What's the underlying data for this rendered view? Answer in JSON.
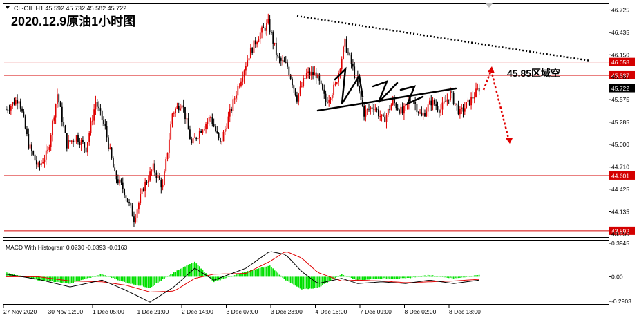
{
  "header": {
    "symbol_line": "CL-OIL,H1  45.592 45.732 45.582 45.722",
    "overlay_title": "2020.12.9原油1小时图",
    "annotation": "45.85区域空"
  },
  "macd_panel": {
    "label": "MACD With Histogram 0.0230 -0.0393 -0.0163",
    "ticks": [
      "0.3945",
      "0.00",
      "-0.2903"
    ]
  },
  "colors": {
    "bull": "#e00000",
    "bear": "#000000",
    "level_line": "#d40000",
    "macd_line": "#000000",
    "signal_line": "#e00000",
    "histogram": "#00e000",
    "price_label_bg": "#d40000",
    "current_label_bg": "#000000"
  },
  "chart_data": [
    {
      "type": "candlestick",
      "symbol": "CL-OIL",
      "timeframe": "H1",
      "ohlc_last": {
        "open": 45.592,
        "high": 45.732,
        "low": 45.582,
        "close": 45.722
      },
      "ylim": [
        43.82,
        46.8
      ],
      "y_ticks": [
        "46.725",
        "46.435",
        "46.150",
        "45.865",
        "45.575",
        "45.285",
        "45.000",
        "44.710",
        "44.425",
        "44.135",
        "43.850"
      ],
      "x_ticks": [
        "27 Nov 2020",
        "30 Nov 12:00",
        "1 Dec 05:00",
        "1 Dec 21:00",
        "2 Dec 14:00",
        "3 Dec 07:00",
        "3 Dec 23:00",
        "4 Dec 16:00",
        "7 Dec 09:00",
        "8 Dec 02:00",
        "8 Dec 18:00"
      ],
      "horizontal_levels": [
        {
          "value": 46.058,
          "label": "46.058"
        },
        {
          "value": 45.887,
          "label": "45.887"
        },
        {
          "value": 44.601,
          "label": "44.601"
        },
        {
          "value": 43.892,
          "label": "43.892"
        }
      ],
      "current_price": {
        "value": 45.722,
        "label": "45.722"
      },
      "close_path": [
        [
          0,
          45.45
        ],
        [
          8,
          45.6
        ],
        [
          14,
          45.0
        ],
        [
          20,
          44.7
        ],
        [
          26,
          44.9
        ],
        [
          32,
          45.65
        ],
        [
          38,
          45.0
        ],
        [
          44,
          45.1
        ],
        [
          50,
          44.95
        ],
        [
          56,
          45.55
        ],
        [
          62,
          45.2
        ],
        [
          68,
          44.6
        ],
        [
          74,
          44.4
        ],
        [
          80,
          44.05
        ],
        [
          86,
          44.45
        ],
        [
          92,
          44.7
        ],
        [
          98,
          44.45
        ],
        [
          104,
          45.4
        ],
        [
          110,
          45.55
        ],
        [
          116,
          45.0
        ],
        [
          122,
          45.2
        ],
        [
          128,
          45.35
        ],
        [
          134,
          45.0
        ],
        [
          140,
          45.4
        ],
        [
          146,
          45.8
        ],
        [
          152,
          46.15
        ],
        [
          158,
          46.4
        ],
        [
          164,
          46.55
        ],
        [
          170,
          46.1
        ],
        [
          176,
          46.0
        ],
        [
          182,
          45.6
        ],
        [
          188,
          45.9
        ],
        [
          194,
          45.9
        ],
        [
          200,
          45.55
        ],
        [
          206,
          45.75
        ],
        [
          212,
          46.3
        ],
        [
          218,
          45.9
        ],
        [
          224,
          45.4
        ],
        [
          230,
          45.5
        ],
        [
          236,
          45.3
        ],
        [
          242,
          45.55
        ],
        [
          248,
          45.4
        ],
        [
          254,
          45.6
        ],
        [
          260,
          45.35
        ],
        [
          266,
          45.55
        ],
        [
          272,
          45.45
        ],
        [
          278,
          45.65
        ],
        [
          284,
          45.4
        ],
        [
          290,
          45.55
        ],
        [
          296,
          45.722
        ]
      ],
      "macd": {
        "macd_line": [
          [
            0,
            0.03
          ],
          [
            20,
            -0.03
          ],
          [
            40,
            -0.12
          ],
          [
            60,
            -0.04
          ],
          [
            75,
            -0.16
          ],
          [
            90,
            -0.3
          ],
          [
            105,
            -0.12
          ],
          [
            118,
            0.1
          ],
          [
            130,
            -0.04
          ],
          [
            150,
            0.1
          ],
          [
            165,
            0.3
          ],
          [
            175,
            0.26
          ],
          [
            185,
            0.06
          ],
          [
            195,
            -0.08
          ],
          [
            210,
            -0.02
          ],
          [
            220,
            -0.08
          ],
          [
            235,
            -0.06
          ],
          [
            250,
            -0.08
          ],
          [
            265,
            -0.04
          ],
          [
            280,
            -0.08
          ],
          [
            296,
            -0.04
          ]
        ],
        "signal_line": [
          [
            0,
            0.0
          ],
          [
            20,
            0.0
          ],
          [
            40,
            -0.05
          ],
          [
            60,
            -0.06
          ],
          [
            75,
            -0.1
          ],
          [
            90,
            -0.18
          ],
          [
            105,
            -0.17
          ],
          [
            118,
            -0.02
          ],
          [
            130,
            0.03
          ],
          [
            150,
            0.04
          ],
          [
            165,
            0.18
          ],
          [
            175,
            0.3
          ],
          [
            185,
            0.22
          ],
          [
            195,
            0.05
          ],
          [
            210,
            -0.05
          ],
          [
            220,
            -0.04
          ],
          [
            235,
            -0.05
          ],
          [
            250,
            -0.07
          ],
          [
            265,
            -0.06
          ],
          [
            280,
            -0.05
          ],
          [
            296,
            -0.03
          ]
        ],
        "histogram": [
          [
            0,
            0.05
          ],
          [
            20,
            -0.04
          ],
          [
            40,
            -0.08
          ],
          [
            60,
            0.03
          ],
          [
            75,
            -0.07
          ],
          [
            90,
            -0.13
          ],
          [
            105,
            0.05
          ],
          [
            118,
            0.18
          ],
          [
            130,
            -0.06
          ],
          [
            150,
            0.06
          ],
          [
            165,
            0.13
          ],
          [
            175,
            -0.04
          ],
          [
            185,
            -0.15
          ],
          [
            195,
            -0.13
          ],
          [
            210,
            0.03
          ],
          [
            220,
            -0.04
          ],
          [
            235,
            -0.02
          ],
          [
            250,
            -0.02
          ],
          [
            265,
            0.02
          ],
          [
            280,
            -0.02
          ],
          [
            296,
            0.02
          ]
        ]
      }
    }
  ]
}
